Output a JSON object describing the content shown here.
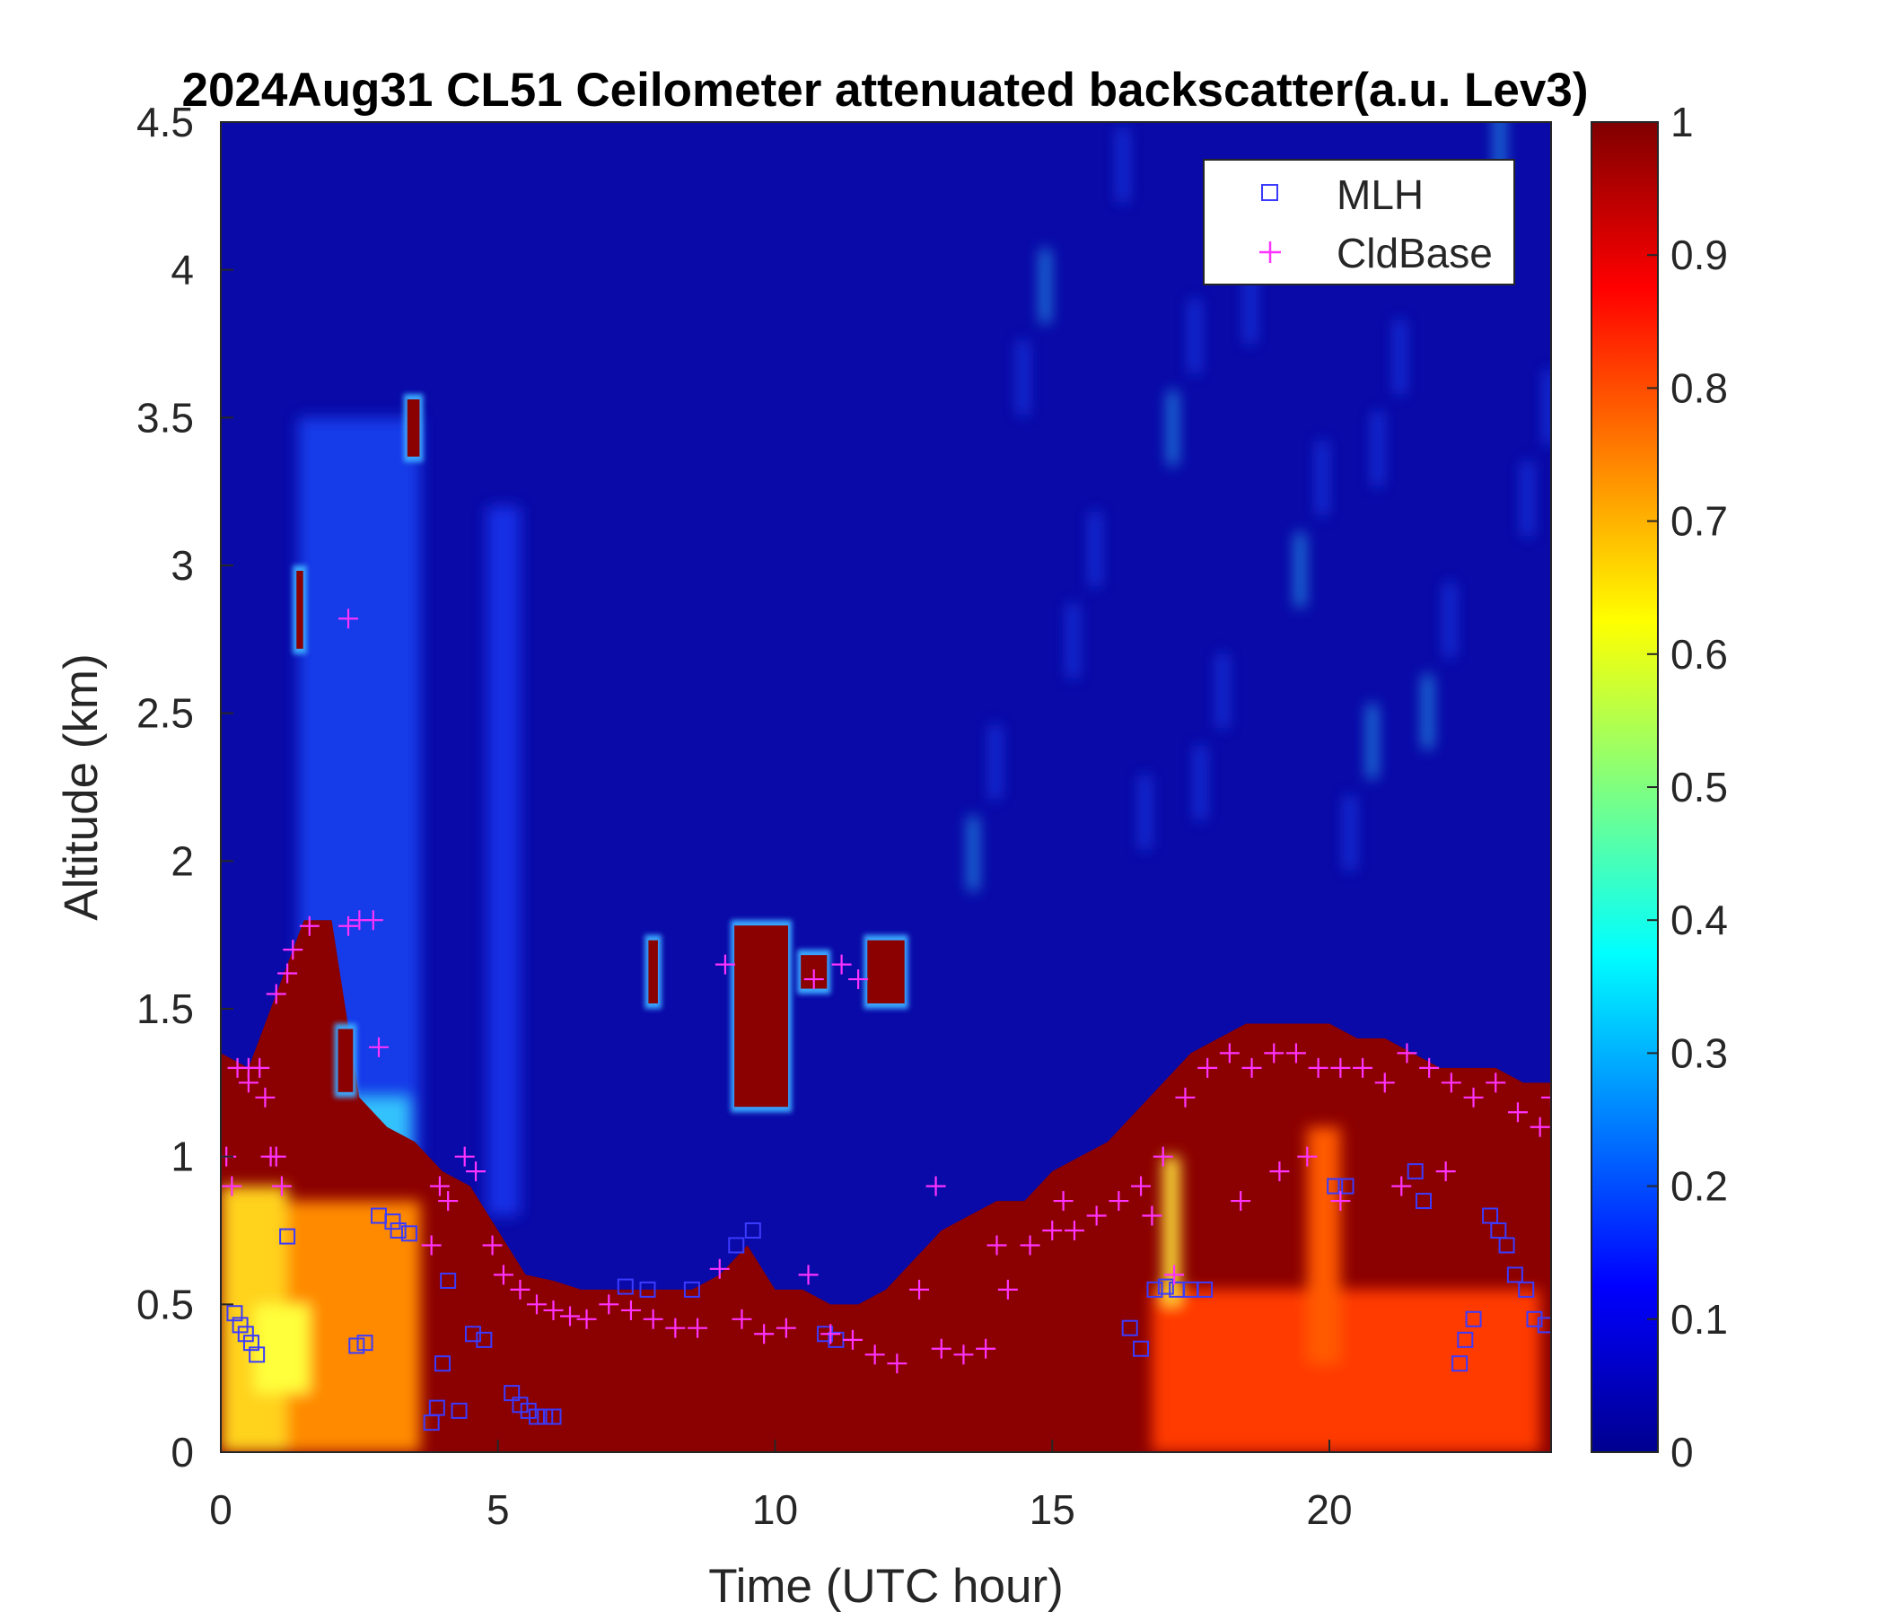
{
  "chart_data": {
    "type": "heatmap",
    "title": "2024Aug31 CL51 Ceilometer attenuated backscatter(a.u. Lev3)",
    "xlabel": "Time (UTC hour)",
    "ylabel": "Altitude (km)",
    "xlim": [
      0,
      24
    ],
    "ylim": [
      0,
      4.5
    ],
    "xticks": [
      0,
      5,
      10,
      15,
      20
    ],
    "xtick_labels": [
      "0",
      "5",
      "10",
      "15",
      "20"
    ],
    "yticks": [
      0,
      0.5,
      1,
      1.5,
      2,
      2.5,
      3,
      3.5,
      4,
      4.5
    ],
    "ytick_labels": [
      "0",
      "0.5",
      "1",
      "1.5",
      "2",
      "2.5",
      "3",
      "3.5",
      "4",
      "4.5"
    ],
    "colorbar": {
      "colormap": "jet",
      "range": [
        0,
        1
      ],
      "ticks": [
        0,
        0.1,
        0.2,
        0.3,
        0.4,
        0.5,
        0.6,
        0.7,
        0.8,
        0.9,
        1
      ],
      "tick_labels": [
        "0",
        "0.1",
        "0.2",
        "0.3",
        "0.4",
        "0.5",
        "0.6",
        "0.7",
        "0.8",
        "0.9",
        "1"
      ]
    },
    "legend": {
      "placement": "top-right",
      "entries": [
        {
          "label": "MLH",
          "marker": "square",
          "color": "#3b3bff"
        },
        {
          "label": "CldBase",
          "marker": "plus",
          "color": "#ff33ff"
        }
      ]
    },
    "boundary_layer": {
      "x": [
        0,
        0.5,
        1,
        1.5,
        2,
        2.5,
        3,
        3.5,
        4,
        4.5,
        5,
        5.5,
        6,
        6.5,
        7,
        7.5,
        8,
        8.5,
        9,
        9.5,
        10,
        10.5,
        11,
        11.5,
        12,
        12.5,
        13,
        13.5,
        14,
        14.5,
        15,
        15.5,
        16,
        16.5,
        17,
        17.5,
        18,
        18.5,
        19,
        19.5,
        20,
        20.5,
        21,
        21.5,
        22,
        22.5,
        23,
        23.5,
        24
      ],
      "top_km": [
        1.35,
        1.3,
        1.55,
        1.8,
        1.8,
        1.2,
        1.1,
        1.05,
        0.95,
        0.9,
        0.75,
        0.6,
        0.58,
        0.55,
        0.55,
        0.55,
        0.55,
        0.55,
        0.6,
        0.7,
        0.55,
        0.55,
        0.5,
        0.5,
        0.55,
        0.65,
        0.75,
        0.8,
        0.85,
        0.85,
        0.95,
        1.0,
        1.05,
        1.15,
        1.25,
        1.35,
        1.4,
        1.45,
        1.45,
        1.45,
        1.45,
        1.4,
        1.4,
        1.35,
        1.3,
        1.3,
        1.3,
        1.25,
        1.25
      ]
    },
    "elevated_clouds": [
      {
        "x_start": 1.3,
        "x_end": 1.55,
        "y_bottom_km": 2.7,
        "y_top_km": 3.0
      },
      {
        "x_start": 3.3,
        "x_end": 3.65,
        "y_bottom_km": 3.35,
        "y_top_km": 3.58
      },
      {
        "x_start": 2.05,
        "x_end": 2.45,
        "y_bottom_km": 1.2,
        "y_top_km": 1.45
      },
      {
        "x_start": 7.65,
        "x_end": 7.95,
        "y_bottom_km": 1.5,
        "y_top_km": 1.75
      },
      {
        "x_start": 9.2,
        "x_end": 10.3,
        "y_bottom_km": 1.15,
        "y_top_km": 1.8
      },
      {
        "x_start": 10.4,
        "x_end": 11.0,
        "y_bottom_km": 1.55,
        "y_top_km": 1.7
      },
      {
        "x_start": 11.6,
        "x_end": 12.4,
        "y_bottom_km": 1.5,
        "y_top_km": 1.75
      }
    ],
    "series": [
      {
        "name": "MLH",
        "x": [
          0.25,
          0.35,
          0.45,
          0.55,
          0.65,
          1.2,
          2.45,
          2.6,
          2.85,
          3.1,
          3.2,
          3.4,
          3.8,
          3.9,
          4.0,
          4.1,
          4.3,
          4.55,
          4.75,
          5.25,
          5.4,
          5.55,
          5.7,
          5.85,
          6.0,
          7.3,
          7.7,
          8.5,
          9.3,
          9.6,
          10.9,
          11.1,
          16.4,
          16.6,
          16.85,
          17.05,
          17.25,
          17.5,
          17.75,
          20.1,
          20.3,
          21.55,
          21.7,
          22.35,
          22.45,
          22.6,
          22.9,
          23.05,
          23.2,
          23.35,
          23.55,
          23.7,
          23.9
        ],
        "y": [
          0.47,
          0.43,
          0.4,
          0.37,
          0.33,
          0.73,
          0.36,
          0.37,
          0.8,
          0.78,
          0.75,
          0.74,
          0.1,
          0.15,
          0.3,
          0.58,
          0.14,
          0.4,
          0.38,
          0.2,
          0.16,
          0.14,
          0.12,
          0.12,
          0.12,
          0.56,
          0.55,
          0.55,
          0.7,
          0.75,
          0.4,
          0.38,
          0.42,
          0.35,
          0.55,
          0.56,
          0.55,
          0.55,
          0.55,
          0.9,
          0.9,
          0.95,
          0.85,
          0.3,
          0.38,
          0.45,
          0.8,
          0.75,
          0.7,
          0.6,
          0.55,
          0.45,
          0.43
        ]
      },
      {
        "name": "CldBase",
        "x": [
          0.1,
          0.3,
          0.5,
          0.7,
          0.9,
          1.1,
          0.2,
          0.5,
          0.8,
          1.0,
          1.2,
          1.0,
          1.3,
          1.6,
          2.3,
          2.5,
          2.75,
          2.85,
          2.3,
          3.95,
          3.8,
          4.1,
          4.4,
          4.6,
          4.9,
          5.1,
          5.4,
          5.7,
          6.0,
          6.3,
          6.6,
          7.0,
          7.4,
          7.8,
          8.2,
          8.6,
          9.0,
          9.4,
          9.8,
          10.2,
          9.1,
          10.6,
          11.0,
          11.4,
          11.8,
          12.2,
          11.2,
          11.5,
          10.7,
          12.6,
          13.0,
          13.4,
          13.8,
          14.2,
          14.6,
          15.0,
          15.4,
          15.8,
          16.2,
          16.6,
          17.0,
          17.4,
          17.8,
          18.2,
          18.6,
          19.0,
          19.4,
          19.8,
          20.2,
          20.6,
          21.0,
          21.4,
          21.8,
          22.2,
          22.6,
          23.0,
          23.4,
          23.8,
          24.0,
          17.2,
          18.4,
          19.1,
          19.6,
          20.2,
          21.3,
          22.1,
          12.9,
          14.0,
          15.2,
          16.8
        ],
        "y": [
          1.0,
          1.3,
          1.3,
          1.3,
          1.0,
          0.9,
          0.9,
          1.25,
          1.2,
          1.55,
          1.62,
          1.0,
          1.7,
          1.78,
          1.78,
          1.8,
          1.8,
          1.37,
          2.82,
          0.9,
          0.7,
          0.85,
          1.0,
          0.95,
          0.7,
          0.6,
          0.55,
          0.5,
          0.48,
          0.46,
          0.45,
          0.5,
          0.48,
          0.45,
          0.42,
          0.42,
          0.62,
          0.45,
          0.4,
          0.42,
          1.65,
          0.6,
          0.4,
          0.38,
          0.33,
          0.3,
          1.65,
          1.6,
          1.6,
          0.55,
          0.35,
          0.33,
          0.35,
          0.55,
          0.7,
          0.75,
          0.75,
          0.8,
          0.85,
          0.9,
          1.0,
          1.2,
          1.3,
          1.35,
          1.3,
          1.35,
          1.35,
          1.3,
          1.3,
          1.3,
          1.25,
          1.35,
          1.3,
          1.25,
          1.2,
          1.25,
          1.15,
          1.1,
          1.2,
          0.6,
          0.85,
          0.95,
          1.0,
          0.85,
          0.9,
          0.95,
          0.9,
          0.7,
          0.85,
          0.8
        ]
      }
    ]
  }
}
